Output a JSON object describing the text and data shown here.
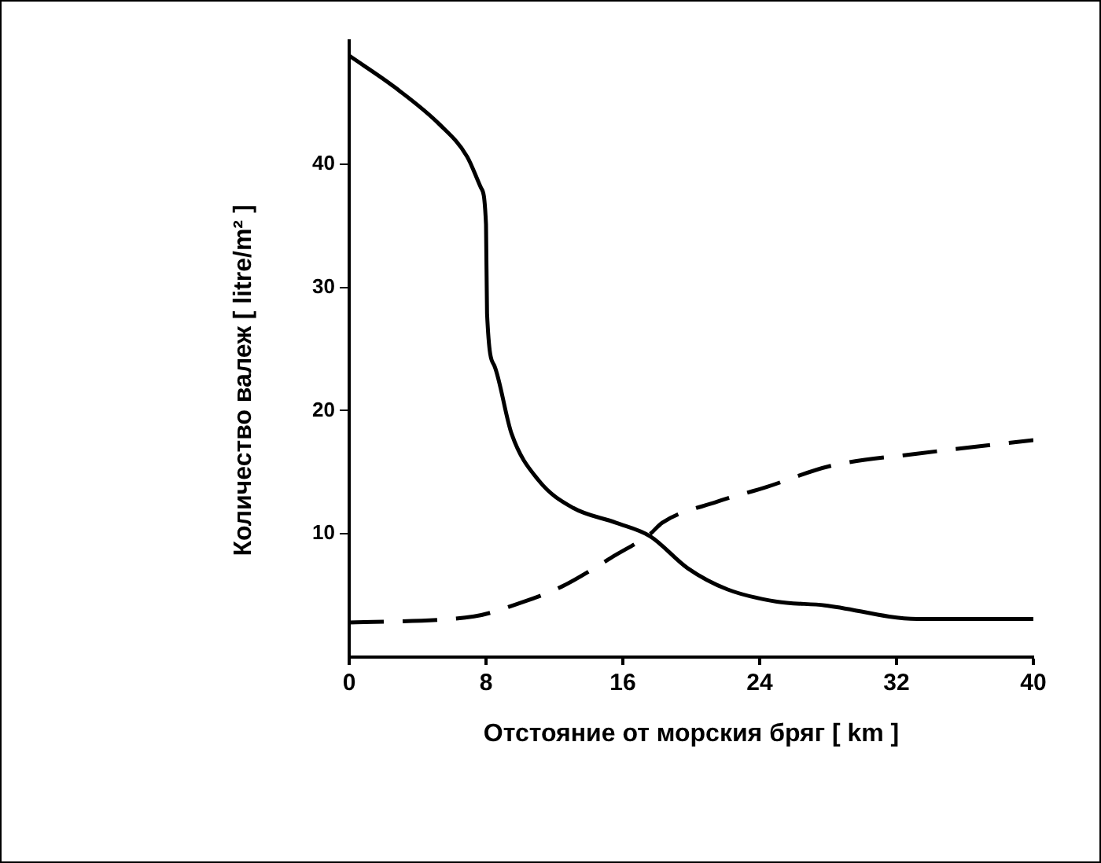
{
  "chart_data": {
    "type": "line",
    "xlabel": "Отстояние от морския бряг [ km ]",
    "ylabel": "Количество валеж [ litre/m² ]",
    "xlim": [
      0,
      40
    ],
    "xticks": [
      0,
      8,
      16,
      24,
      32,
      40
    ],
    "ylim": [
      0,
      50
    ],
    "yticks": [
      10,
      20,
      30,
      40
    ],
    "grid": false,
    "legend": false,
    "marker": "none",
    "series": [
      {
        "color": "#000000",
        "line_style": "solid",
        "x": [
          0,
          2.7,
          5.3,
          6.9,
          7.7,
          8,
          8.06,
          8.5,
          9.5,
          11.1,
          13.1,
          15.6,
          17.6,
          19.8,
          22.1,
          25,
          27.8,
          33.2,
          40
        ],
        "values": [
          48.8,
          46.2,
          43.2,
          40.6,
          38.1,
          35.1,
          27.9,
          23.6,
          18.1,
          14.3,
          12.1,
          10.9,
          9.8,
          7.2,
          5.5,
          4.5,
          4.2,
          3.1,
          3.1
        ]
      },
      {
        "color": "#000000",
        "line_style": "dashed",
        "x": [
          0,
          7.3,
          9.8,
          12.4,
          15.6,
          17.6,
          18.3,
          21.5,
          24.4,
          28.1,
          33.2,
          40
        ],
        "values": [
          2.8,
          3.3,
          4.3,
          5.7,
          8.3,
          10,
          10.9,
          12.6,
          13.8,
          15.5,
          16.5,
          17.6
        ]
      }
    ]
  }
}
